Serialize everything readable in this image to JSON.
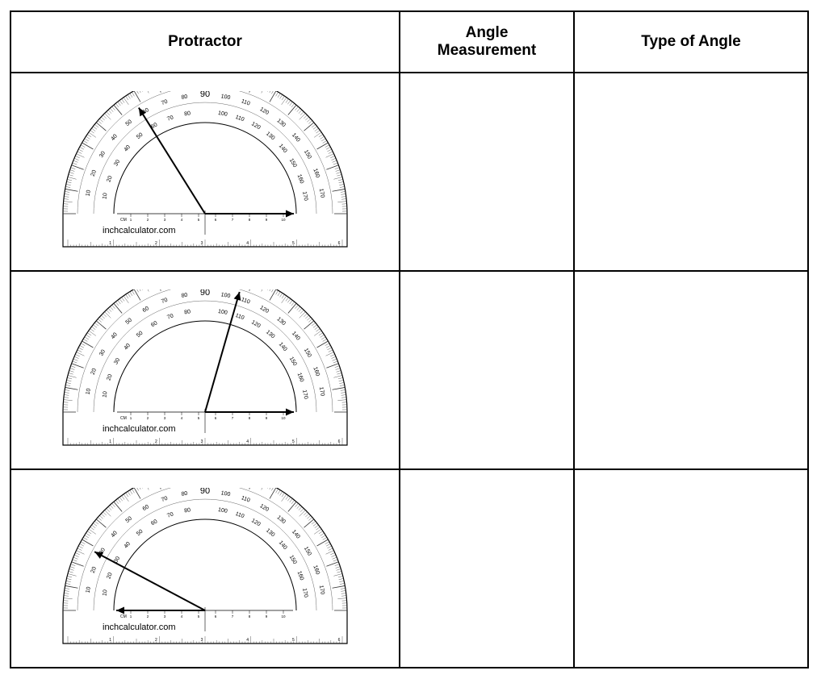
{
  "table": {
    "headers": {
      "protractor": "Protractor",
      "angle_line1": "Angle",
      "angle_line2": "Measurement",
      "type": "Type of Angle"
    },
    "watermark": "inchcalculator.com",
    "cm_label": "CM",
    "outer_scale_labels": [
      "10",
      "20",
      "30",
      "40",
      "50",
      "60",
      "70",
      "80",
      "90",
      "100",
      "110",
      "120",
      "130",
      "140",
      "150",
      "160",
      "170"
    ],
    "inner_scale_labels": [
      "170",
      "160",
      "150",
      "140",
      "130",
      "120",
      "110",
      "100",
      "80",
      "70",
      "60",
      "50",
      "40",
      "30",
      "20",
      "10"
    ],
    "cm_scale_labels": [
      "1",
      "2",
      "3",
      "4",
      "5",
      "6",
      "7",
      "8",
      "9",
      "10"
    ],
    "inch_scale_labels": [
      "1",
      "2",
      "3",
      "4",
      "5",
      "6"
    ],
    "rows": [
      {
        "ray_angles_deg": [
          0,
          122
        ],
        "angle_measurement": "",
        "type_of_angle": ""
      },
      {
        "ray_angles_deg": [
          0,
          74
        ],
        "angle_measurement": "",
        "type_of_angle": ""
      },
      {
        "ray_angles_deg": [
          180,
          152
        ],
        "angle_measurement": "",
        "type_of_angle": ""
      }
    ]
  }
}
